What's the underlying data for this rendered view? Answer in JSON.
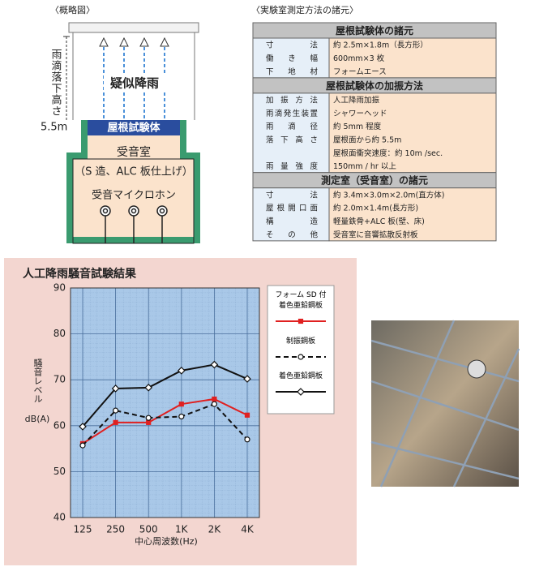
{
  "diagram": {
    "caption": "〈概略図〉",
    "height_label": "雨滴落下高さ",
    "height_value": "5.5m",
    "rain": "疑似降雨",
    "roof": "屋根試験体",
    "room": "受音室",
    "room_note": "（S 造、ALC 板仕上げ）",
    "mic": "受音マイクロホン"
  },
  "spec_table": {
    "caption": "〈実験室測定方法の諸元〉",
    "sections": [
      {
        "title": "屋根試験体の諸元",
        "rows": [
          [
            "寸法",
            "約 2.5m×1.8m（長方形）"
          ],
          [
            "働き幅",
            "600mm×3 枚"
          ],
          [
            "下地材",
            "フォームエース"
          ]
        ]
      },
      {
        "title": "屋根試験体の加振方法",
        "rows": [
          [
            "加振方法",
            "人工降雨加振"
          ],
          [
            "雨滴発生装置",
            "シャワーヘッド"
          ],
          [
            "雨滴径",
            "約 5mm 程度"
          ],
          [
            "落下高さ",
            "屋根面から約 5.5m"
          ],
          [
            null,
            "屋根面衝突速度：約 10m /sec."
          ],
          [
            "雨量強度",
            "150mm / hr 以上"
          ]
        ]
      },
      {
        "title": "測定室（受音室）の諸元",
        "rows": [
          [
            "寸法",
            "約 3.4m×3.0m×2.0m(直方体)"
          ],
          [
            "屋根開口面",
            "約 2.0m×1.4m(長方形)"
          ],
          [
            "構造",
            "軽量鉄骨+ALC 板(壁、床)"
          ],
          [
            "その他",
            "受音室に音響拡散反射板"
          ]
        ]
      }
    ]
  },
  "chart_data": {
    "type": "line",
    "title": "人工降雨騒音試験結果",
    "xlabel": "中心周波数(Hz)",
    "ylabel": "騒音レベル",
    "yunit": "dB(A)",
    "categories": [
      "125",
      "250",
      "500",
      "1K",
      "2K",
      "4K"
    ],
    "ylim": [
      40,
      90
    ],
    "yticks": [
      40,
      50,
      60,
      70,
      80,
      90
    ],
    "grid": true,
    "series": [
      {
        "name": "フォーム SD 付\n着色亜鉛鋼板",
        "color": "#e02020",
        "marker": "square",
        "dash": false,
        "values": [
          56.1,
          60.7,
          60.7,
          64.7,
          65.8,
          62.3
        ]
      },
      {
        "name": "制振鋼板",
        "color": "#111111",
        "marker": "circle",
        "dash": true,
        "values": [
          55.7,
          63.3,
          61.7,
          62.0,
          64.7,
          57.0
        ]
      },
      {
        "name": "着色亜鉛鋼板",
        "color": "#111111",
        "marker": "diamond",
        "dash": false,
        "values": [
          59.8,
          68.1,
          68.3,
          72.0,
          73.3,
          70.2
        ]
      }
    ]
  }
}
